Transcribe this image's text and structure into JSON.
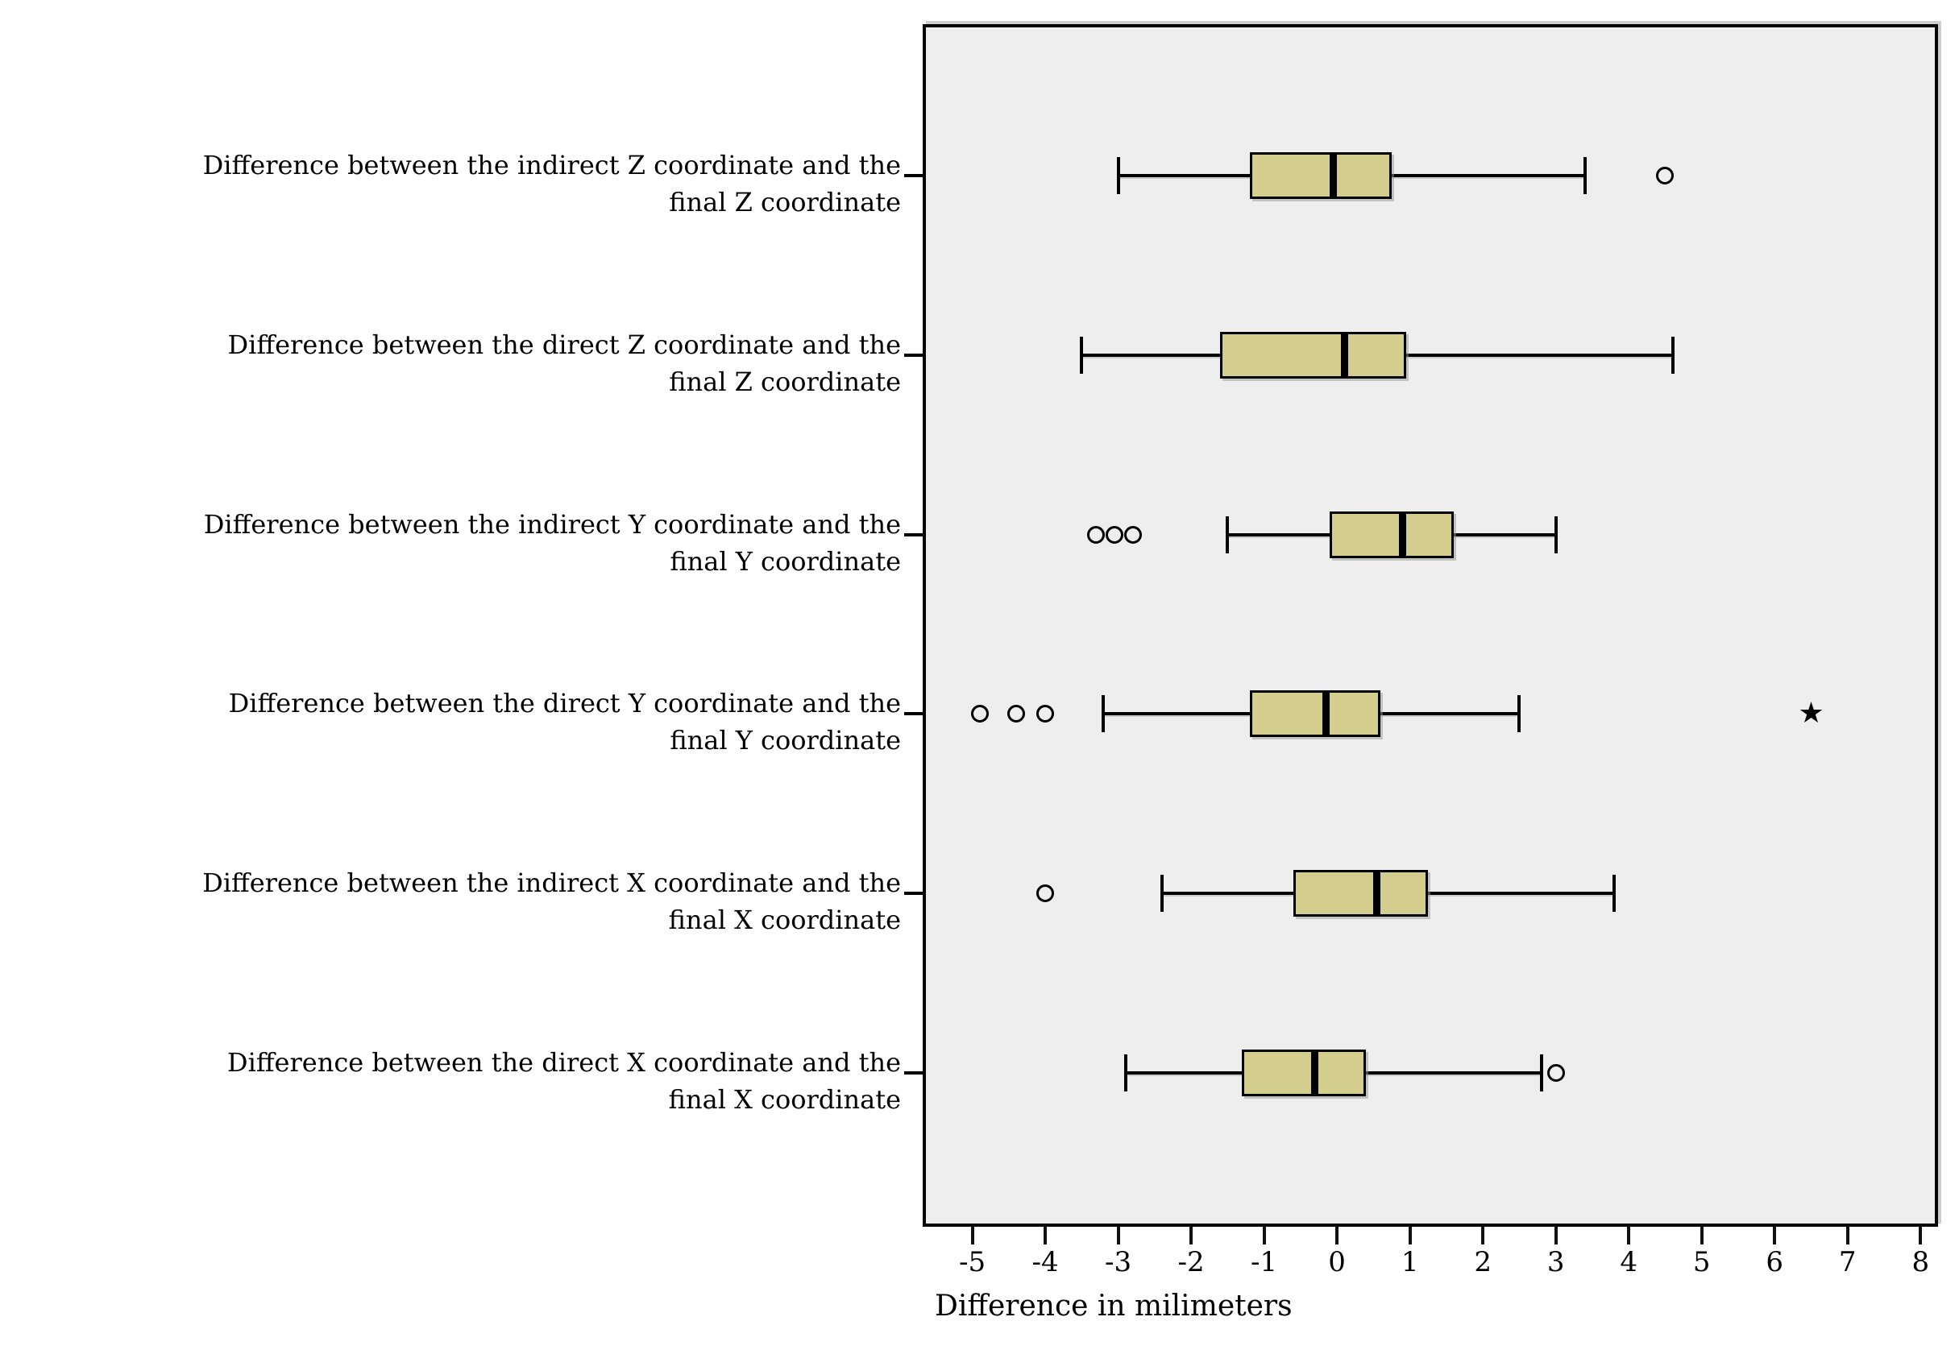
{
  "figure": {
    "background": "#ffffff",
    "plot_background": "#eeeeee",
    "frame_color": "#000000",
    "box_fill": "#d3cd8e",
    "line_color": "#000000",
    "marker_glyphs": {
      "star": "★"
    }
  },
  "chart_data": {
    "type": "boxplot",
    "orientation": "horizontal",
    "title": "",
    "xlabel": "Difference in milimeters",
    "ylabel": "",
    "grid": false,
    "legend": "none",
    "x_ticks": [
      -5,
      -4,
      -3,
      -2,
      -1,
      0,
      1,
      2,
      3,
      4,
      5,
      6,
      7,
      8
    ],
    "xlim": [
      -5.68,
      8.24
    ],
    "series": [
      {
        "label_line1": "Difference between the indirect Z coordinate and the",
        "label_line2": "final Z coordinate",
        "whisker_low": -3.0,
        "q1": -1.2,
        "median": -0.05,
        "q3": 0.75,
        "whisker_high": 3.4,
        "outliers": [
          {
            "value": 4.5,
            "marker": "circle"
          }
        ]
      },
      {
        "label_line1": "Difference between the direct Z coordinate and the",
        "label_line2": "final Z coordinate",
        "whisker_low": -3.5,
        "q1": -1.6,
        "median": 0.1,
        "q3": 0.95,
        "whisker_high": 4.6,
        "outliers": []
      },
      {
        "label_line1": "Difference between the indirect Y coordinate and the",
        "label_line2": "final Y coordinate",
        "whisker_low": -1.5,
        "q1": -0.1,
        "median": 0.9,
        "q3": 1.6,
        "whisker_high": 3.0,
        "outliers": [
          {
            "value": -3.3,
            "marker": "circle"
          },
          {
            "value": -3.05,
            "marker": "circle"
          },
          {
            "value": -2.8,
            "marker": "circle"
          }
        ]
      },
      {
        "label_line1": "Difference between the direct Y coordinate and the",
        "label_line2": "final Y coordinate",
        "whisker_low": -3.2,
        "q1": -1.2,
        "median": -0.15,
        "q3": 0.6,
        "whisker_high": 2.5,
        "outliers": [
          {
            "value": -4.9,
            "marker": "circle"
          },
          {
            "value": -4.4,
            "marker": "circle"
          },
          {
            "value": -4.0,
            "marker": "circle"
          },
          {
            "value": 6.5,
            "marker": "star"
          }
        ]
      },
      {
        "label_line1": "Difference between the indirect X coordinate and the",
        "label_line2": "final X coordinate",
        "whisker_low": -2.4,
        "q1": -0.6,
        "median": 0.55,
        "q3": 1.25,
        "whisker_high": 3.8,
        "outliers": [
          {
            "value": -4.0,
            "marker": "circle"
          }
        ]
      },
      {
        "label_line1": "Difference between the direct X coordinate and the",
        "label_line2": "final X coordinate",
        "whisker_low": -2.9,
        "q1": -1.3,
        "median": -0.3,
        "q3": 0.4,
        "whisker_high": 2.8,
        "outliers": [
          {
            "value": 3.0,
            "marker": "circle"
          }
        ]
      }
    ]
  }
}
